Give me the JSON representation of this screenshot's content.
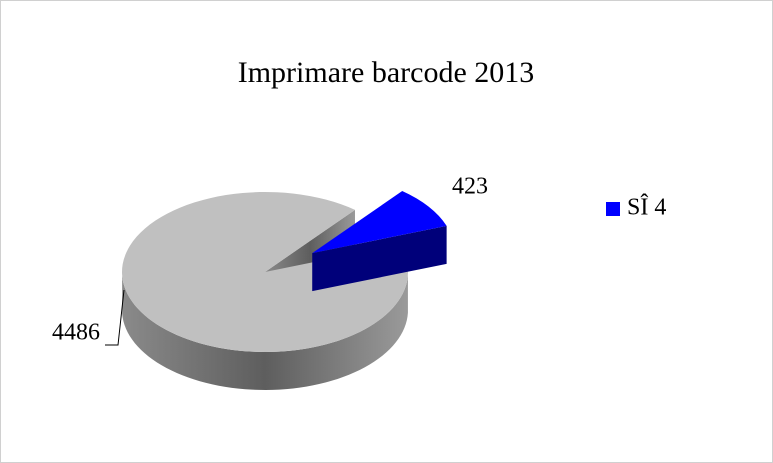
{
  "chart_data": {
    "type": "pie",
    "title": "Imprimare barcode 2013",
    "categories": [
      null,
      "SÎ 4"
    ],
    "values": [
      4486,
      423
    ],
    "colors": [
      "#c0c0c0",
      "#0000ff"
    ],
    "legend": "right"
  }
}
